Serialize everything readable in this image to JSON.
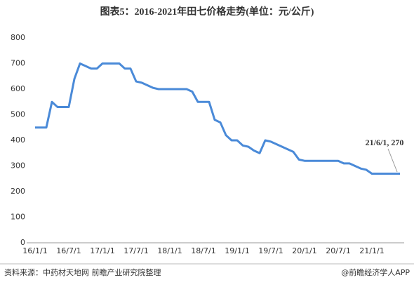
{
  "chart_data": {
    "type": "line",
    "title": "图表5：2016-2021年田七价格走势(单位：元/公斤)",
    "categories": [
      "16/1/1",
      null,
      null,
      null,
      null,
      null,
      "16/7/1",
      null,
      null,
      null,
      null,
      null,
      "17/1/1",
      null,
      null,
      null,
      null,
      null,
      "17/7/1",
      null,
      null,
      null,
      null,
      null,
      "18/1/1",
      null,
      null,
      null,
      null,
      null,
      "18/7/1",
      null,
      null,
      null,
      null,
      null,
      "19/1/1",
      null,
      null,
      null,
      null,
      null,
      "19/7/1",
      null,
      null,
      null,
      null,
      null,
      "20/1/1",
      null,
      null,
      null,
      null,
      null,
      "20/7/1",
      null,
      null,
      null,
      null,
      null,
      "21/1/1",
      null,
      null,
      null,
      null,
      null
    ],
    "series": [
      {
        "name": "田七价格",
        "color": "#4a8ad8",
        "values": [
          450,
          450,
          450,
          550,
          530,
          530,
          530,
          640,
          700,
          690,
          680,
          680,
          700,
          700,
          700,
          700,
          680,
          680,
          630,
          625,
          615,
          605,
          600,
          600,
          600,
          600,
          600,
          600,
          590,
          550,
          550,
          550,
          480,
          470,
          420,
          400,
          400,
          380,
          375,
          360,
          350,
          400,
          395,
          385,
          375,
          365,
          355,
          325,
          320,
          320,
          320,
          320,
          320,
          320,
          320,
          310,
          310,
          300,
          290,
          285,
          270,
          270,
          270,
          270,
          270,
          270
        ]
      }
    ],
    "ylim": [
      0,
      800
    ],
    "yticks": [
      0,
      100,
      200,
      300,
      400,
      500,
      600,
      700,
      800
    ],
    "annotation": "21/6/1, 270",
    "source": "资料来源：中药材天地网 前瞻产业研究院整理",
    "credit": "@前瞻经济学人APP"
  }
}
